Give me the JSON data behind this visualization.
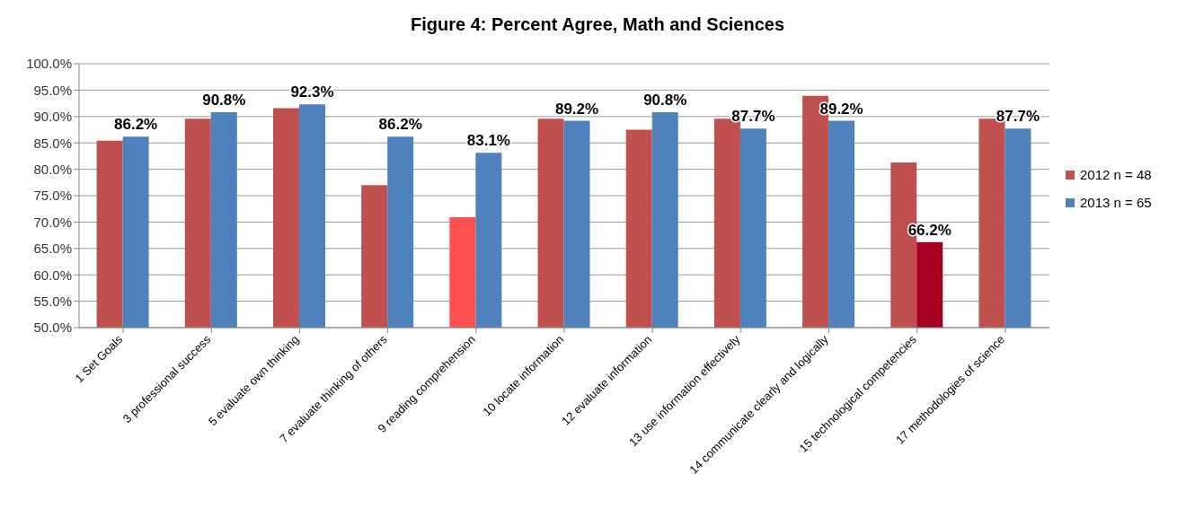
{
  "chart_data": {
    "type": "bar",
    "title": "Figure 4:  Percent Agree, Math and Sciences",
    "categories": [
      "1 Set Goals",
      "3 professional success",
      "5 evaluate own thinking",
      "7 evaluate thinking of others",
      "9 reading comprehension",
      "10 locate information",
      "12 evaluate information",
      "13 use information effectively",
      "14 communicate clearly and logically",
      "15 technological competencies",
      "17 methodologies of science"
    ],
    "series": [
      {
        "name": "2012 n = 48",
        "color": "#c0504d",
        "colors": [
          "#c0504d",
          "#c0504d",
          "#c0504d",
          "#c0504d",
          "#ff5050",
          "#c0504d",
          "#c0504d",
          "#c0504d",
          "#c0504d",
          "#c0504d",
          "#c0504d"
        ],
        "values": [
          85.4,
          89.6,
          91.6,
          77.0,
          70.9,
          89.6,
          87.5,
          89.6,
          93.9,
          81.3,
          89.6
        ]
      },
      {
        "name": "2013 n = 65",
        "color": "#4f81bd",
        "colors": [
          "#4f81bd",
          "#4f81bd",
          "#4f81bd",
          "#4f81bd",
          "#4f81bd",
          "#4f81bd",
          "#4f81bd",
          "#4f81bd",
          "#4f81bd",
          "#a50021",
          "#4f81bd"
        ],
        "values": [
          86.2,
          90.8,
          92.3,
          86.2,
          83.1,
          89.2,
          90.8,
          87.7,
          89.2,
          66.2,
          87.7
        ],
        "value_labels": [
          "86.2%",
          "90.8%",
          "92.3%",
          "86.2%",
          "83.1%",
          "89.2%",
          "90.8%",
          "87.7%",
          "89.2%",
          "66.2%",
          "87.7%"
        ]
      }
    ],
    "ylim": [
      50,
      100
    ],
    "yticks": [
      {
        "value": 50,
        "label": "50.0%"
      },
      {
        "value": 55,
        "label": "55.0%"
      },
      {
        "value": 60,
        "label": "60.0%"
      },
      {
        "value": 65,
        "label": "65.0%"
      },
      {
        "value": 70,
        "label": "70.0%"
      },
      {
        "value": 75,
        "label": "75.0%"
      },
      {
        "value": 80,
        "label": "80.0%"
      },
      {
        "value": 85,
        "label": "85.0%"
      },
      {
        "value": 90,
        "label": "90.0%"
      },
      {
        "value": 95,
        "label": "95.0%"
      },
      {
        "value": 100,
        "label": "100.0%"
      }
    ],
    "grid": "y",
    "legend": "right"
  }
}
